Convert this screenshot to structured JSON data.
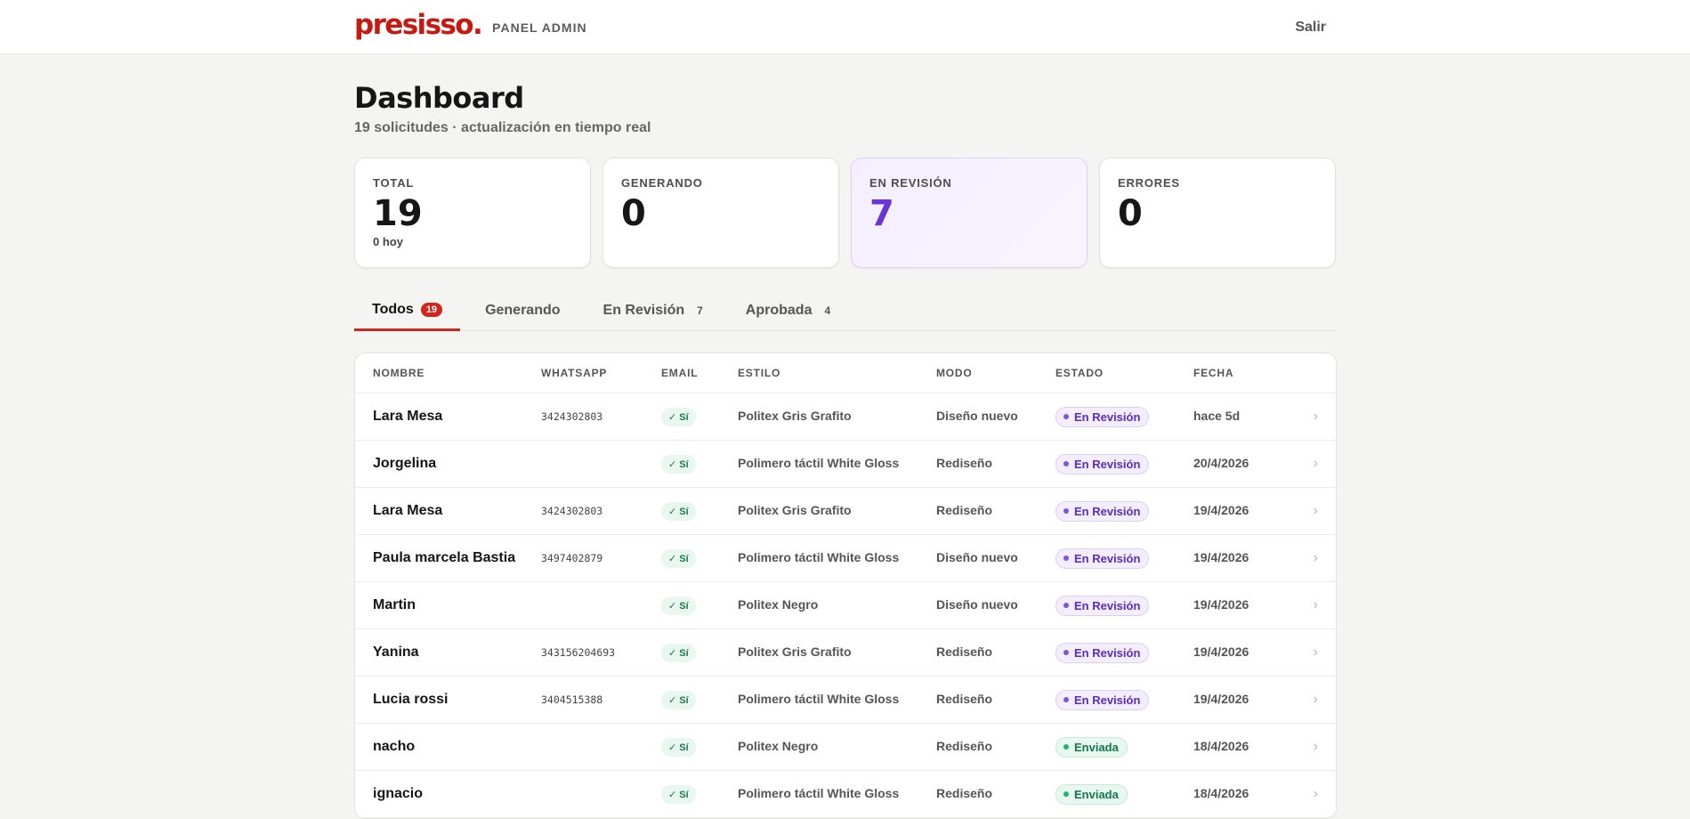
{
  "header": {
    "logo": "presisso.",
    "panel_label": "PANEL ADMIN",
    "logout_label": "Salir"
  },
  "page": {
    "title": "Dashboard",
    "subtitle": "19 solicitudes · actualización en tiempo real"
  },
  "stats": [
    {
      "label": "TOTAL",
      "value": "19",
      "sub": "0 hoy"
    },
    {
      "label": "GENERANDO",
      "value": "0",
      "sub": ""
    },
    {
      "label": "EN REVISIÓN",
      "value": "7",
      "sub": ""
    },
    {
      "label": "ERRORES",
      "value": "0",
      "sub": ""
    }
  ],
  "tabs": [
    {
      "label": "Todos",
      "count": "19"
    },
    {
      "label": "Generando",
      "count": ""
    },
    {
      "label": "En Revisión",
      "count": "7"
    },
    {
      "label": "Aprobada",
      "count": "4"
    }
  ],
  "table": {
    "columns": [
      "NOMBRE",
      "WHATSAPP",
      "EMAIL",
      "ESTILO",
      "MODO",
      "ESTADO",
      "FECHA"
    ],
    "rows": [
      {
        "name": "Lara Mesa",
        "whatsapp": "3424302803",
        "email": "✓ Sí",
        "style": "Politex Gris Grafito",
        "mode": "Diseño nuevo",
        "status": "En Revisión",
        "date": "hace 5d"
      },
      {
        "name": "Jorgelina",
        "whatsapp": "",
        "email": "✓ Sí",
        "style": "Polimero táctil White Gloss",
        "mode": "Rediseño",
        "status": "En Revisión",
        "date": "20/4/2026"
      },
      {
        "name": "Lara Mesa",
        "whatsapp": "3424302803",
        "email": "✓ Sí",
        "style": "Politex Gris Grafito",
        "mode": "Rediseño",
        "status": "En Revisión",
        "date": "19/4/2026"
      },
      {
        "name": "Paula marcela Bastia",
        "whatsapp": "3497402879",
        "email": "✓ Sí",
        "style": "Polimero táctil White Gloss",
        "mode": "Diseño nuevo",
        "status": "En Revisión",
        "date": "19/4/2026"
      },
      {
        "name": "Martin",
        "whatsapp": "",
        "email": "✓ Sí",
        "style": "Politex Negro",
        "mode": "Diseño nuevo",
        "status": "En Revisión",
        "date": "19/4/2026"
      },
      {
        "name": "Yanina",
        "whatsapp": "343156204693",
        "email": "✓ Sí",
        "style": "Politex Gris Grafito",
        "mode": "Rediseño",
        "status": "En Revisión",
        "date": "19/4/2026"
      },
      {
        "name": "Lucia rossi",
        "whatsapp": "3404515388",
        "email": "✓ Sí",
        "style": "Polimero táctil White Gloss",
        "mode": "Rediseño",
        "status": "En Revisión",
        "date": "19/4/2026"
      },
      {
        "name": "nacho",
        "whatsapp": "",
        "email": "✓ Sí",
        "style": "Politex Negro",
        "mode": "Rediseño",
        "status": "Enviada",
        "date": "18/4/2026"
      },
      {
        "name": "ignacio",
        "whatsapp": "",
        "email": "✓ Sí",
        "style": "Polimero táctil White Gloss",
        "mode": "Rediseño",
        "status": "Enviada",
        "date": "18/4/2026"
      }
    ]
  },
  "colors": {
    "brand": "#c8180f",
    "accent_red": "#d2251b",
    "review_purple": "#6a35d6",
    "sent_green": "#14784a"
  },
  "icons": {
    "row_action": "chevron-right-icon"
  }
}
